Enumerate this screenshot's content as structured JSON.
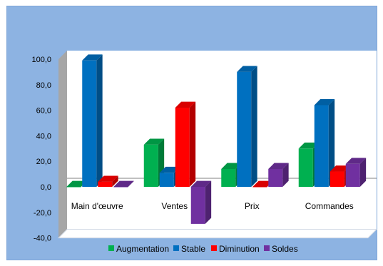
{
  "chart_data": {
    "type": "bar",
    "categories": [
      "Main d'œuvre",
      "Ventes",
      "Prix",
      "Commandes"
    ],
    "series": [
      {
        "name": "Augmentation",
        "values": [
          0,
          33,
          14,
          30
        ],
        "color": "#00b050"
      },
      {
        "name": "Stable",
        "values": [
          99,
          11,
          90,
          64
        ],
        "color": "#0070c0"
      },
      {
        "name": "Diminution",
        "values": [
          4,
          62,
          0,
          12
        ],
        "color": "#ff0000"
      },
      {
        "name": "Soldes",
        "values": [
          0,
          -29,
          14,
          18
        ],
        "color": "#7030a0"
      }
    ],
    "yticks": [
      "100,0",
      "80,0",
      "60,0",
      "40,0",
      "20,0",
      "0,0",
      "-20,0",
      "-40,0"
    ],
    "ylim": [
      -40,
      100
    ],
    "three_d": true,
    "legend_position": "bottom",
    "plot_area_color": "#ffffff",
    "frame_color": "#8db3e2",
    "wall_side_color": "#a6a6a6"
  }
}
